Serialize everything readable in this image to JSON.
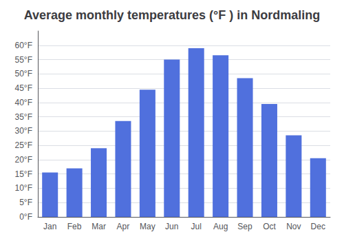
{
  "chart_data": {
    "type": "bar",
    "title": "Average monthly temperatures (°F ) in Nordmaling",
    "categories": [
      "Jan",
      "Feb",
      "Mar",
      "Apr",
      "May",
      "Jun",
      "Jul",
      "Aug",
      "Sep",
      "Oct",
      "Nov",
      "Dec"
    ],
    "values": [
      15.5,
      17.0,
      24.0,
      33.5,
      44.5,
      55.0,
      59.0,
      56.5,
      48.5,
      39.5,
      28.5,
      20.5
    ],
    "ylim": [
      0,
      65
    ],
    "yticks": [
      {
        "value": 0,
        "label": "0°F"
      },
      {
        "value": 5,
        "label": "5°F"
      },
      {
        "value": 10,
        "label": "10°F"
      },
      {
        "value": 15,
        "label": "15°F"
      },
      {
        "value": 20,
        "label": "20°F"
      },
      {
        "value": 25,
        "label": "25°F"
      },
      {
        "value": 30,
        "label": "30°F"
      },
      {
        "value": 35,
        "label": "35°F"
      },
      {
        "value": 40,
        "label": "40°F"
      },
      {
        "value": 45,
        "label": "45°F"
      },
      {
        "value": 50,
        "label": "50°F"
      },
      {
        "value": 55,
        "label": "55°F"
      },
      {
        "value": 60,
        "label": "60°F"
      }
    ],
    "grid": true
  }
}
